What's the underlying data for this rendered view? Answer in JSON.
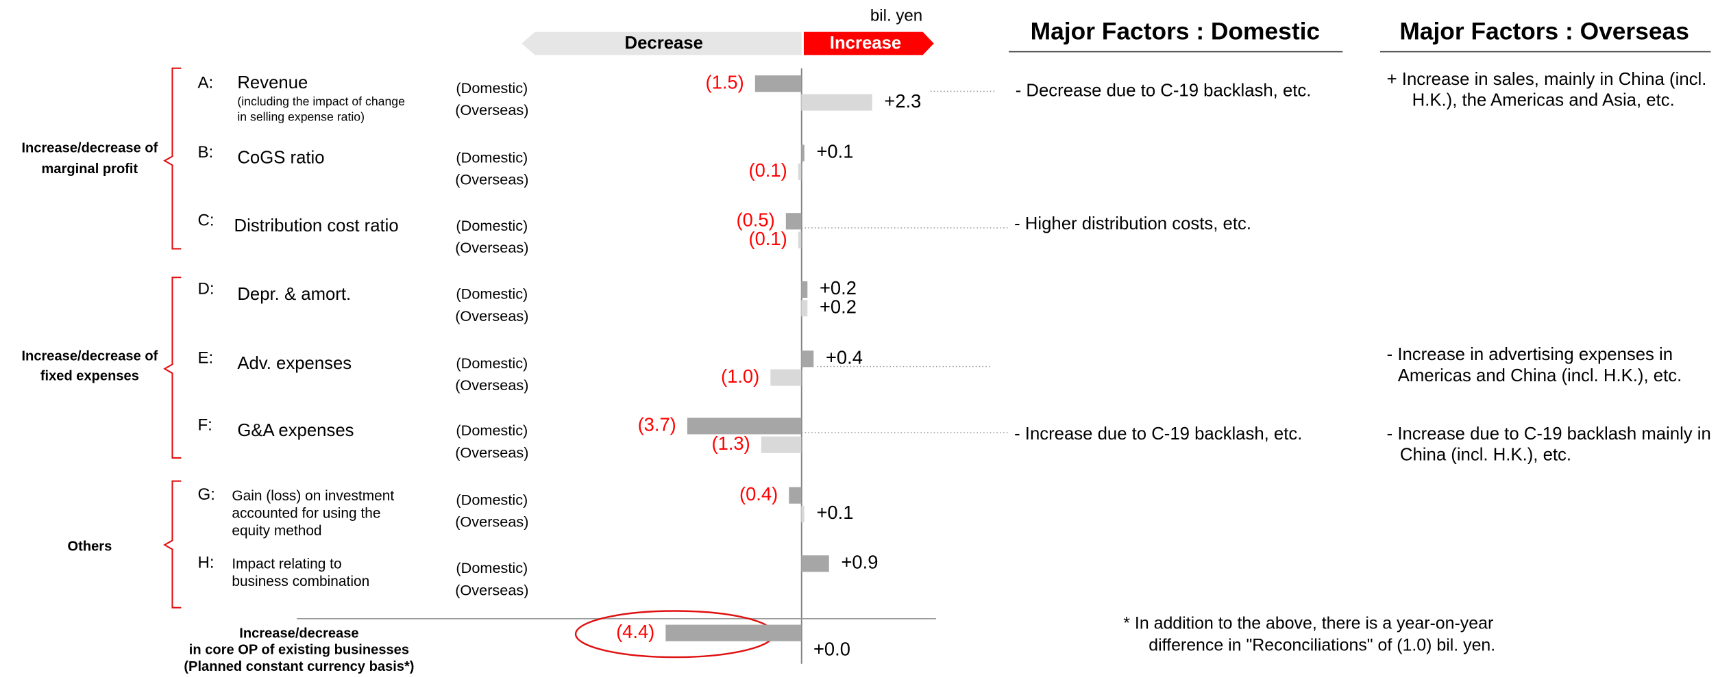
{
  "chart_data": {
    "type": "bar",
    "unit": "bil. yen",
    "header": {
      "decrease": "Decrease",
      "increase": "Increase"
    },
    "xlim": [
      -9,
      4.3
    ],
    "colors": {
      "negative_label": "#ff0000",
      "positive_label": "#000000"
    },
    "groups": [
      {
        "label": [
          "Increase/decrease of",
          "marginal profit"
        ]
      },
      {
        "label": [
          "Increase/decrease of",
          "fixed expenses"
        ]
      },
      {
        "label": [
          "Others"
        ]
      }
    ],
    "categories": [
      {
        "letter": "A:",
        "name": [
          "Revenue"
        ],
        "note": [
          "(including the impact of change",
          "in selling expense ratio)"
        ]
      },
      {
        "letter": "B:",
        "name": [
          "CoGS ratio"
        ]
      },
      {
        "letter": "C:",
        "name": [
          "Distribution cost ratio"
        ]
      },
      {
        "letter": "D:",
        "name": [
          "Depr. & amort."
        ]
      },
      {
        "letter": "E:",
        "name": [
          "Adv. expenses"
        ]
      },
      {
        "letter": "F:",
        "name": [
          "G&A expenses"
        ]
      },
      {
        "letter": "G:",
        "name": [
          "Gain (loss) on investment",
          "accounted for using the",
          "equity method"
        ]
      },
      {
        "letter": "H:",
        "name": [
          "Impact relating to",
          "business combination"
        ]
      }
    ],
    "series": [
      {
        "name": "(Domestic)",
        "color": "#a6a6a6",
        "values": [
          -1.5,
          0.1,
          -0.5,
          0.2,
          0.4,
          -3.7,
          -0.4,
          0.9
        ],
        "value_labels": [
          "(1.5)",
          "+0.1",
          "(0.5)",
          "+0.2",
          "+0.4",
          "(3.7)",
          "(0.4)",
          "+0.9"
        ]
      },
      {
        "name": "(Overseas)",
        "color": "#d9d9d9",
        "values": [
          2.3,
          -0.1,
          -0.1,
          0.2,
          -1.0,
          -1.3,
          0.1,
          null
        ],
        "value_labels": [
          "+2.3",
          "(0.1)",
          "(0.1)",
          "+0.2",
          "(1.0)",
          "(1.3)",
          "+0.1",
          null
        ]
      }
    ],
    "total": {
      "label": [
        "Increase/decrease",
        "in core OP of existing businesses",
        "(Planned constant currency basis*)"
      ],
      "values": [
        -4.4,
        0.0
      ],
      "value_labels": [
        "(4.4)",
        "+0.0"
      ],
      "color": "#a6a6a6"
    }
  },
  "factors": {
    "domestic": {
      "title": "Major Factors : Domestic",
      "items": [
        [
          "-  Decrease due to C-19 backlash, etc."
        ],
        [
          "- Higher distribution costs, etc."
        ],
        [
          "- Increase due to C-19 backlash, etc."
        ]
      ]
    },
    "overseas": {
      "title": "Major Factors : Overseas",
      "items": [
        [
          "+ Increase in sales, mainly in China (incl.",
          "H.K.), the Americas and Asia, etc."
        ],
        [
          "- Increase in advertising expenses in",
          "Americas and China (incl. H.K.), etc."
        ],
        [
          "- Increase due to C-19 backlash mainly in",
          "China (incl. H.K.), etc."
        ]
      ]
    }
  },
  "footnote": [
    "*    In addition to the above, there is a year-on-year",
    "difference in \"Reconciliations\" of (1.0) bil. yen."
  ]
}
